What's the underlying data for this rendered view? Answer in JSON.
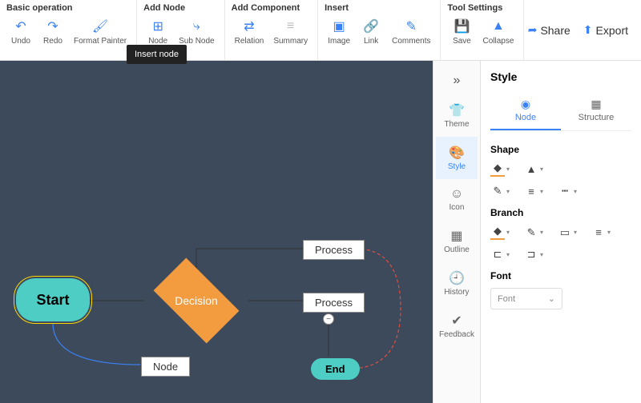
{
  "toolbar": {
    "groups": [
      {
        "title": "Basic operation",
        "buttons": [
          {
            "name": "undo-button",
            "label": "Undo",
            "icon": "↶",
            "color": "#3b82f6"
          },
          {
            "name": "redo-button",
            "label": "Redo",
            "icon": "↷",
            "color": "#3b82f6"
          },
          {
            "name": "format-painter-button",
            "label": "Format Painter",
            "icon": "🖌",
            "color": "#3b82f6"
          }
        ]
      },
      {
        "title": "Add Node",
        "buttons": [
          {
            "name": "insert-node-button",
            "label": "Node",
            "icon": "⊞",
            "color": "#3b82f6"
          },
          {
            "name": "sub-node-button",
            "label": "Sub Node",
            "icon": "⤷",
            "color": "#3b82f6"
          }
        ]
      },
      {
        "title": "Add Component",
        "buttons": [
          {
            "name": "relation-button",
            "label": "Relation",
            "icon": "⇄",
            "color": "#3b82f6"
          },
          {
            "name": "summary-button",
            "label": "Summary",
            "icon": "≡",
            "color": "#bbb"
          }
        ]
      },
      {
        "title": "Insert",
        "buttons": [
          {
            "name": "image-button",
            "label": "Image",
            "icon": "▣",
            "color": "#3b82f6"
          },
          {
            "name": "link-button",
            "label": "Link",
            "icon": "🔗",
            "color": "#3b82f6"
          },
          {
            "name": "comments-button",
            "label": "Comments",
            "icon": "✎",
            "color": "#3b82f6"
          }
        ]
      },
      {
        "title": "Tool Settings",
        "buttons": [
          {
            "name": "save-button",
            "label": "Save",
            "icon": "💾",
            "color": "#bbb"
          },
          {
            "name": "collapse-button",
            "label": "Collapse",
            "icon": "▲",
            "color": "#3b82f6"
          }
        ]
      }
    ],
    "tooltip": "Insert node",
    "right": {
      "share": "Share",
      "export": "Export"
    }
  },
  "canvas": {
    "background": "#3d4a5c",
    "nodes": {
      "start": {
        "label": "Start",
        "fill": "#4ecdc4"
      },
      "decision": {
        "label": "Decision",
        "fill": "#f39c3f"
      },
      "process1": {
        "label": "Process"
      },
      "process2": {
        "label": "Process"
      },
      "node": {
        "label": "Node"
      },
      "end": {
        "label": "End",
        "fill": "#4ecdc4"
      }
    }
  },
  "sidenav": {
    "items": [
      {
        "name": "theme",
        "label": "Theme",
        "icon": "👕"
      },
      {
        "name": "style",
        "label": "Style",
        "icon": "🎨",
        "active": true
      },
      {
        "name": "icon",
        "label": "Icon",
        "icon": "☺"
      },
      {
        "name": "outline",
        "label": "Outline",
        "icon": "▦"
      },
      {
        "name": "history",
        "label": "History",
        "icon": "🕘"
      },
      {
        "name": "feedback",
        "label": "Feedback",
        "icon": "✔"
      }
    ]
  },
  "panel": {
    "title": "Style",
    "tabs": {
      "node": "Node",
      "structure": "Structure"
    },
    "sections": {
      "shape": "Shape",
      "branch": "Branch",
      "font": "Font"
    },
    "font_placeholder": "Font",
    "accent_color": "#f39c3f"
  }
}
